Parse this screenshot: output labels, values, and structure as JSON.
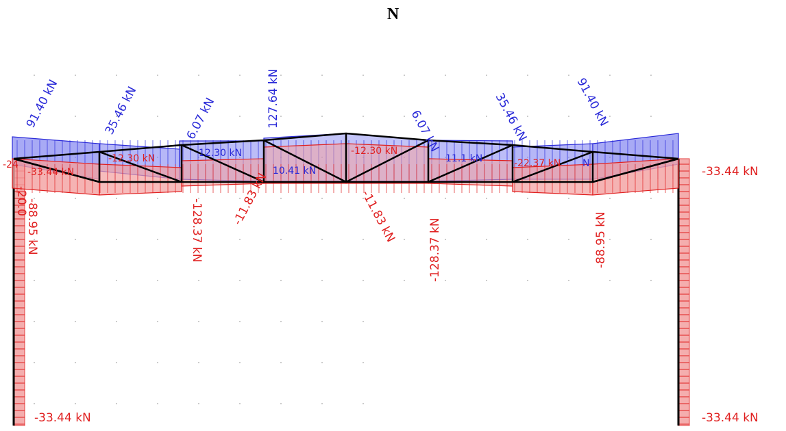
{
  "title": "N",
  "colors": {
    "tension_fill": "#7a7cf0",
    "tension_stroke": "#2a2ad8",
    "compression_fill": "#f3a0a0",
    "compression_stroke": "#e02020",
    "frame": "#000000",
    "grid_dot": "#bbbbbb"
  },
  "labels": {
    "top_91_left": "91.40 kN",
    "top_35_left": "35.46 kN",
    "top_6_left": "6.07 kN",
    "top_127": "127.64 kN",
    "top_6_right": "6.07 kN",
    "top_35_right": "35.46 kN",
    "top_91_right": "91.40 kN",
    "mid_minus24": "-24",
    "mid_minus33": "-33.44 kN",
    "mid_12": "12.30 kN",
    "mid_minus12_left": "-12.30 kN",
    "mid_10": "10.41 kN",
    "mid_minus12_right": "-12.30 kN",
    "mid_11": "11.1 kN",
    "mid_minus22": "-22.37 kN",
    "mid_n": "N",
    "bot_88_left": "-88.95 kN",
    "bot_128_left": "-128.37 kN",
    "bot_11_left": "-11.83 kN",
    "bot_11_right": "-11.83 kN",
    "bot_128_right": "-128.37 kN",
    "bot_88_right": "-88.95 kN",
    "col_left_top": "-20.0",
    "col_right_top": "-33.44 kN",
    "col_left_bottom": "-33.44 kN",
    "col_right_bottom": "-33.44 kN"
  }
}
